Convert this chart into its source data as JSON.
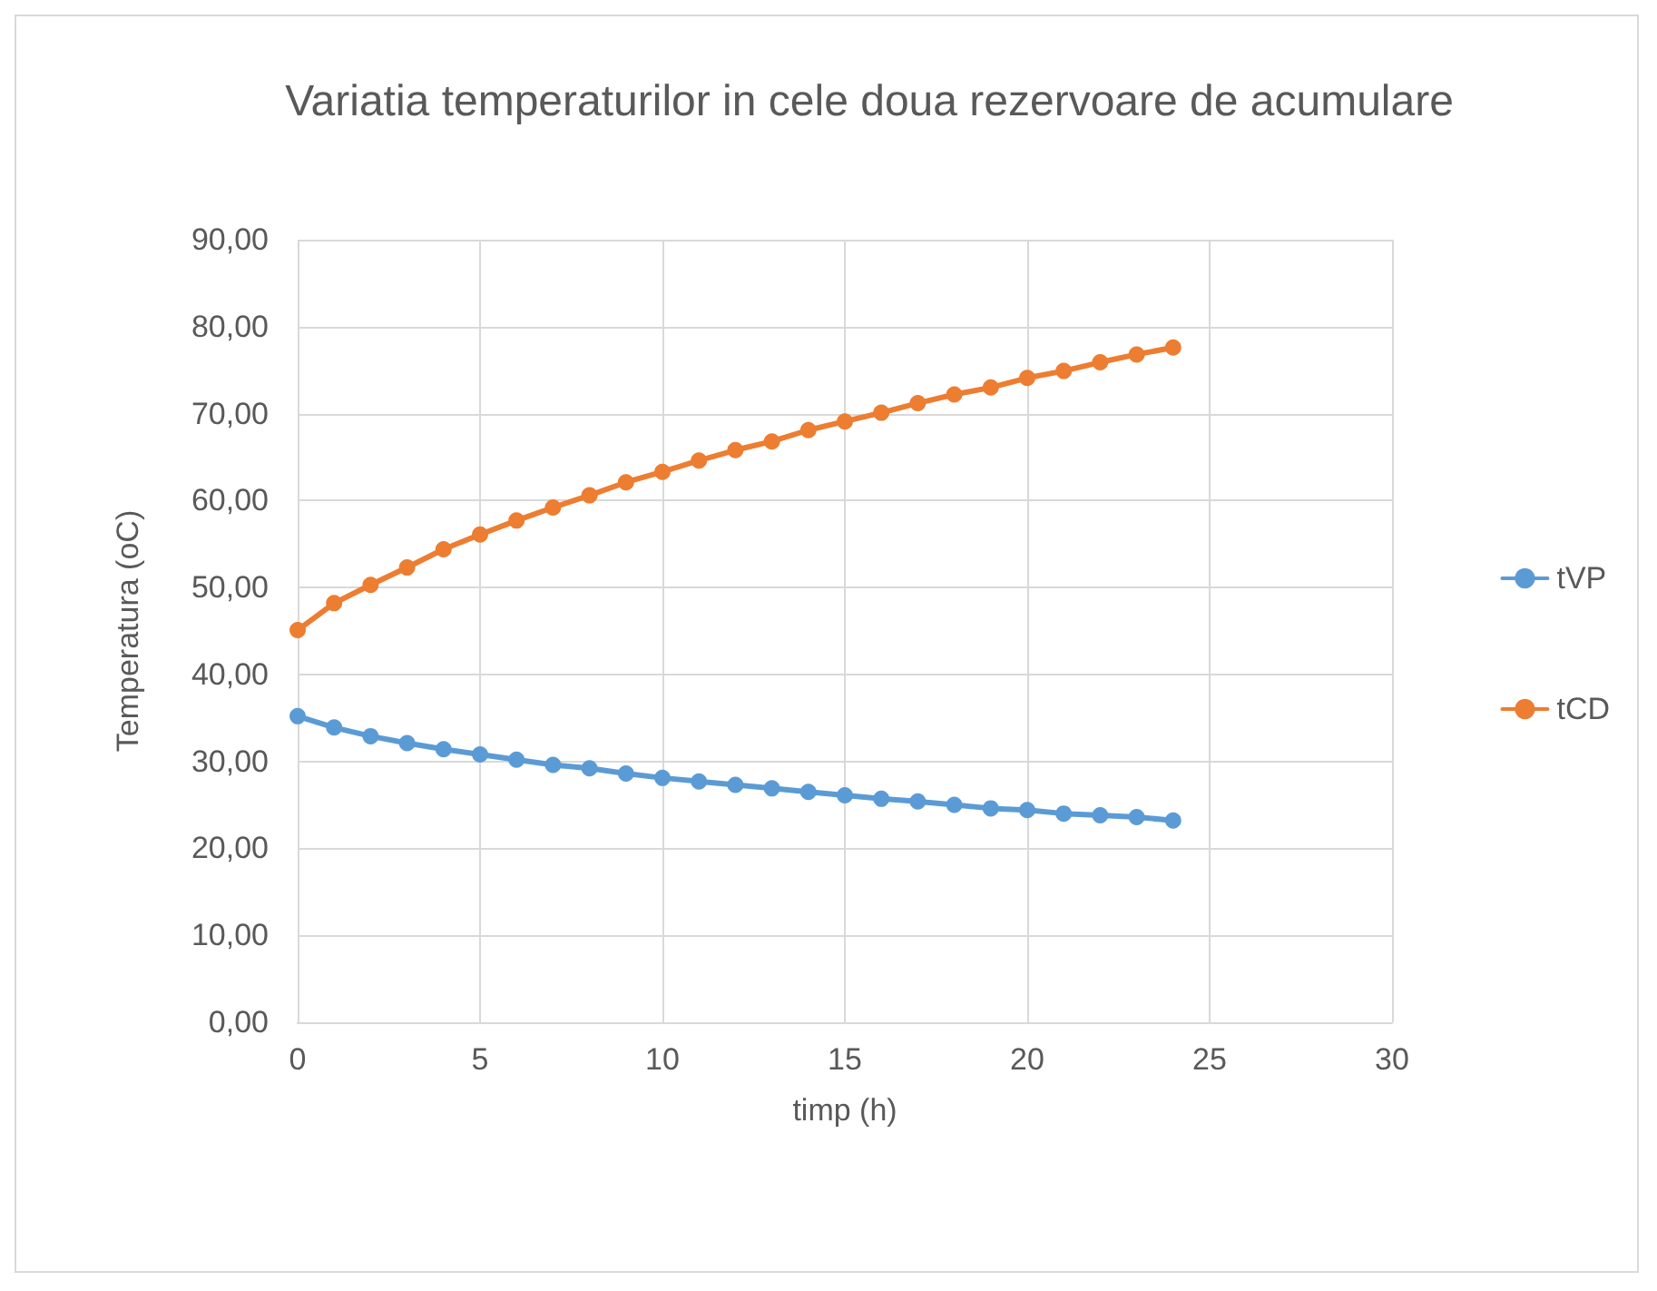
{
  "chart_data": {
    "type": "line",
    "title": "Variatia temperaturilor in cele doua rezervoare de acumulare",
    "xlabel": "timp (h)",
    "ylabel": "Temperatura (oC)",
    "x": [
      0,
      1,
      2,
      3,
      4,
      5,
      6,
      7,
      8,
      9,
      10,
      11,
      12,
      13,
      14,
      15,
      16,
      17,
      18,
      19,
      20,
      21,
      22,
      23,
      24
    ],
    "series": [
      {
        "name": "tVP",
        "color": "#5b9bd5",
        "values": [
          35.2,
          33.9,
          32.9,
          32.1,
          31.4,
          30.8,
          30.2,
          29.6,
          29.2,
          28.6,
          28.1,
          27.7,
          27.3,
          26.9,
          26.5,
          26.1,
          25.7,
          25.4,
          25.0,
          24.6,
          24.4,
          24.0,
          23.8,
          23.6,
          23.2
        ]
      },
      {
        "name": "tCD",
        "color": "#ed7d31",
        "values": [
          45.1,
          48.2,
          50.3,
          52.3,
          54.4,
          56.1,
          57.7,
          59.2,
          60.6,
          62.1,
          63.3,
          64.6,
          65.8,
          66.8,
          68.1,
          69.1,
          70.1,
          71.2,
          72.2,
          73.0,
          74.1,
          74.9,
          75.9,
          76.8,
          77.6
        ]
      }
    ],
    "xlim": [
      0,
      30
    ],
    "xticks": [
      0,
      5,
      10,
      15,
      20,
      25,
      30
    ],
    "ylim": [
      0,
      90
    ],
    "yticks": [
      {
        "value": 0,
        "label": "0,00"
      },
      {
        "value": 10,
        "label": "10,00"
      },
      {
        "value": 20,
        "label": "20,00"
      },
      {
        "value": 30,
        "label": "30,00"
      },
      {
        "value": 40,
        "label": "40,00"
      },
      {
        "value": 50,
        "label": "50,00"
      },
      {
        "value": 60,
        "label": "60,00"
      },
      {
        "value": 70,
        "label": "70,00"
      },
      {
        "value": 80,
        "label": "80,00"
      },
      {
        "value": 90,
        "label": "90,00"
      }
    ],
    "grid": true,
    "legend": "right",
    "marker": "circle",
    "line_style": "solid"
  }
}
